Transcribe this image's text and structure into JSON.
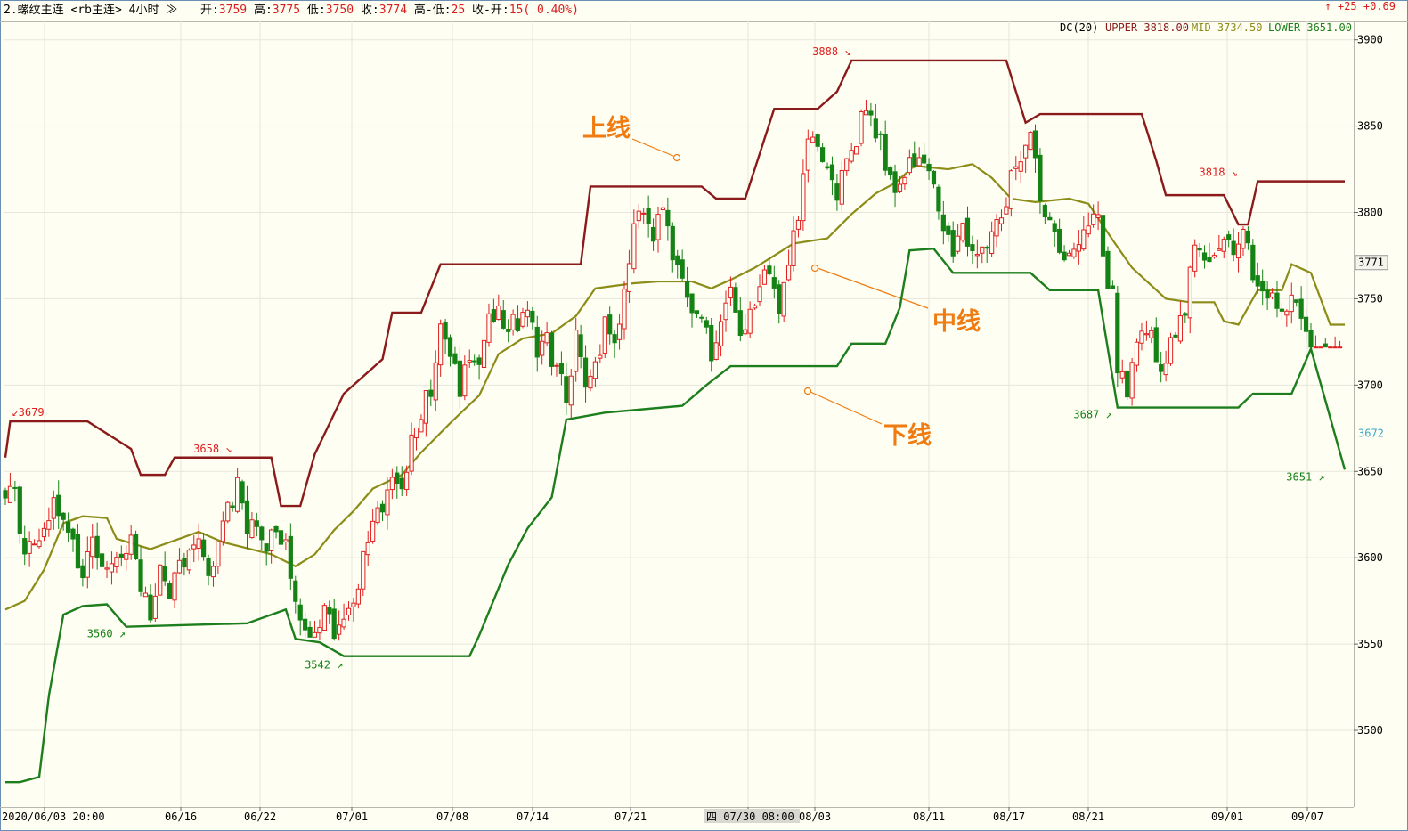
{
  "header": {
    "title": "2.螺纹主连 <rb主连> 4小时",
    "open_label": "开",
    "open_value": "3759",
    "high_label": "高",
    "high_value": "3775",
    "low_label": "低",
    "low_value": "3750",
    "close_label": "收",
    "close_value": "3774",
    "range_label": "高-低",
    "range_value": "25",
    "change_label": "收-开",
    "change_value": "15( 0.40%)",
    "right_change": "↑ +25 +0.69"
  },
  "colors": {
    "background": "#fefef2",
    "grid": "#e6e6dc",
    "up_candle": "#e02020",
    "down_candle": "#158215",
    "upper_line": "#8b1a1a",
    "mid_line": "#8c8c18",
    "lower_line": "#1c7e1c",
    "annotation": "#f07b10",
    "marker_high": "#e02020",
    "marker_low": "#158215"
  },
  "chart_data": {
    "type": "candlestick",
    "title": "",
    "ylim": [
      3460,
      3905
    ],
    "y_ticks": [
      3500,
      3550,
      3600,
      3650,
      3700,
      3750,
      3800,
      3850,
      3900
    ],
    "current_price_label": "3771",
    "cursor_price_label": "3672",
    "x_labels": [
      "2020/06/03 20:00",
      "06/16",
      "06/22",
      "07/01",
      "07/08",
      "07/14",
      "07/21",
      "四 07/30 08:00",
      "08/03",
      "08/11",
      "08/17",
      "08/21",
      "09/01",
      "09/07"
    ],
    "indicator": {
      "name": "DC(20)",
      "upper_text": "UPPER 3818.00",
      "mid_text": "MID 3734.50",
      "lower_text": "LOWER 3651.00",
      "upper": 3818.0,
      "mid": 3734.5,
      "lower": 3651.0
    },
    "upper_steps": [
      [
        0,
        3658
      ],
      [
        1,
        3679
      ],
      [
        17,
        3679
      ],
      [
        26,
        3663
      ],
      [
        28,
        3648
      ],
      [
        33,
        3648
      ],
      [
        35,
        3658
      ],
      [
        55,
        3658
      ],
      [
        57,
        3630
      ],
      [
        61,
        3630
      ],
      [
        64,
        3660
      ],
      [
        70,
        3695
      ],
      [
        78,
        3715
      ],
      [
        80,
        3742
      ],
      [
        86,
        3742
      ],
      [
        90,
        3770
      ],
      [
        104,
        3770
      ],
      [
        119,
        3770
      ],
      [
        121,
        3815
      ],
      [
        144,
        3815
      ],
      [
        147,
        3808
      ],
      [
        153,
        3808
      ],
      [
        159,
        3860
      ],
      [
        168,
        3860
      ],
      [
        172,
        3870
      ],
      [
        175,
        3888
      ],
      [
        207,
        3888
      ],
      [
        211,
        3852
      ],
      [
        214,
        3857
      ],
      [
        235,
        3857
      ],
      [
        238,
        3830
      ],
      [
        240,
        3810
      ],
      [
        252,
        3810
      ],
      [
        255,
        3793
      ],
      [
        257,
        3793
      ],
      [
        259,
        3818
      ],
      [
        277,
        3818
      ]
    ],
    "mid_line": [
      [
        0,
        3570
      ],
      [
        4,
        3575
      ],
      [
        8,
        3593
      ],
      [
        12,
        3620
      ],
      [
        16,
        3624
      ],
      [
        21,
        3623
      ],
      [
        23,
        3611
      ],
      [
        30,
        3605
      ],
      [
        35,
        3610
      ],
      [
        40,
        3615
      ],
      [
        45,
        3609
      ],
      [
        55,
        3602
      ],
      [
        60,
        3595
      ],
      [
        64,
        3602
      ],
      [
        68,
        3616
      ],
      [
        72,
        3627
      ],
      [
        76,
        3640
      ],
      [
        82,
        3648
      ],
      [
        86,
        3661
      ],
      [
        92,
        3678
      ],
      [
        98,
        3694
      ],
      [
        102,
        3718
      ],
      [
        107,
        3727
      ],
      [
        113,
        3730
      ],
      [
        118,
        3740
      ],
      [
        122,
        3756
      ],
      [
        130,
        3759
      ],
      [
        135,
        3760
      ],
      [
        142,
        3760
      ],
      [
        146,
        3756
      ],
      [
        150,
        3761
      ],
      [
        155,
        3768
      ],
      [
        163,
        3782
      ],
      [
        170,
        3785
      ],
      [
        175,
        3799
      ],
      [
        180,
        3811
      ],
      [
        184,
        3817
      ],
      [
        188,
        3827
      ],
      [
        195,
        3825
      ],
      [
        200,
        3828
      ],
      [
        204,
        3820
      ],
      [
        208,
        3808
      ],
      [
        213,
        3806
      ],
      [
        220,
        3808
      ],
      [
        224,
        3805
      ],
      [
        229,
        3784
      ],
      [
        233,
        3768
      ],
      [
        240,
        3750
      ],
      [
        245,
        3748
      ],
      [
        250,
        3748
      ],
      [
        252,
        3737
      ],
      [
        255,
        3735
      ],
      [
        259,
        3755
      ],
      [
        264,
        3755
      ],
      [
        266,
        3770
      ],
      [
        270,
        3765
      ],
      [
        274,
        3735
      ],
      [
        277,
        3735
      ]
    ],
    "lower_steps": [
      [
        0,
        3470
      ],
      [
        3,
        3470
      ],
      [
        7,
        3473
      ],
      [
        9,
        3520
      ],
      [
        12,
        3567
      ],
      [
        16,
        3572
      ],
      [
        21,
        3573
      ],
      [
        25,
        3560
      ],
      [
        50,
        3562
      ],
      [
        55,
        3567
      ],
      [
        58,
        3570
      ],
      [
        60,
        3553
      ],
      [
        65,
        3551
      ],
      [
        70,
        3543
      ],
      [
        96,
        3543
      ],
      [
        98,
        3555
      ],
      [
        104,
        3596
      ],
      [
        108,
        3617
      ],
      [
        113,
        3635
      ],
      [
        116,
        3680
      ],
      [
        124,
        3684
      ],
      [
        140,
        3688
      ],
      [
        145,
        3700
      ],
      [
        150,
        3711
      ],
      [
        172,
        3711
      ],
      [
        175,
        3724
      ],
      [
        182,
        3724
      ],
      [
        185,
        3745
      ],
      [
        187,
        3778
      ],
      [
        192,
        3779
      ],
      [
        196,
        3765
      ],
      [
        198,
        3765
      ],
      [
        212,
        3765
      ],
      [
        216,
        3755
      ],
      [
        226,
        3755
      ],
      [
        230,
        3687
      ],
      [
        255,
        3687
      ],
      [
        258,
        3695
      ],
      [
        266,
        3695
      ],
      [
        270,
        3721
      ],
      [
        277,
        3651
      ]
    ],
    "price_path": [
      [
        0,
        3640
      ],
      [
        2,
        3634
      ],
      [
        4,
        3608
      ],
      [
        6,
        3604
      ],
      [
        8,
        3612
      ],
      [
        10,
        3630
      ],
      [
        12,
        3622
      ],
      [
        14,
        3605
      ],
      [
        16,
        3590
      ],
      [
        18,
        3612
      ],
      [
        20,
        3596
      ],
      [
        22,
        3592
      ],
      [
        24,
        3600
      ],
      [
        26,
        3615
      ],
      [
        28,
        3582
      ],
      [
        30,
        3570
      ],
      [
        32,
        3592
      ],
      [
        34,
        3580
      ],
      [
        36,
        3598
      ],
      [
        38,
        3600
      ],
      [
        40,
        3610
      ],
      [
        42,
        3592
      ],
      [
        44,
        3604
      ],
      [
        46,
        3630
      ],
      [
        48,
        3640
      ],
      [
        50,
        3620
      ],
      [
        52,
        3612
      ],
      [
        54,
        3607
      ],
      [
        56,
        3615
      ],
      [
        58,
        3612
      ],
      [
        60,
        3568
      ],
      [
        62,
        3555
      ],
      [
        64,
        3560
      ],
      [
        66,
        3570
      ],
      [
        68,
        3558
      ],
      [
        70,
        3570
      ],
      [
        72,
        3575
      ],
      [
        74,
        3600
      ],
      [
        76,
        3615
      ],
      [
        78,
        3630
      ],
      [
        80,
        3640
      ],
      [
        82,
        3645
      ],
      [
        84,
        3665
      ],
      [
        86,
        3680
      ],
      [
        88,
        3700
      ],
      [
        90,
        3730
      ],
      [
        92,
        3720
      ],
      [
        94,
        3700
      ],
      [
        96,
        3718
      ],
      [
        98,
        3712
      ],
      [
        100,
        3740
      ],
      [
        102,
        3745
      ],
      [
        104,
        3730
      ],
      [
        106,
        3738
      ],
      [
        108,
        3740
      ],
      [
        110,
        3720
      ],
      [
        112,
        3725
      ],
      [
        114,
        3705
      ],
      [
        116,
        3695
      ],
      [
        118,
        3725
      ],
      [
        120,
        3700
      ],
      [
        122,
        3710
      ],
      [
        124,
        3735
      ],
      [
        126,
        3720
      ],
      [
        128,
        3752
      ],
      [
        130,
        3790
      ],
      [
        132,
        3800
      ],
      [
        134,
        3790
      ],
      [
        136,
        3800
      ],
      [
        138,
        3775
      ],
      [
        140,
        3760
      ],
      [
        142,
        3745
      ],
      [
        144,
        3738
      ],
      [
        146,
        3720
      ],
      [
        148,
        3740
      ],
      [
        150,
        3755
      ],
      [
        152,
        3732
      ],
      [
        154,
        3745
      ],
      [
        156,
        3760
      ],
      [
        158,
        3760
      ],
      [
        160,
        3740
      ],
      [
        162,
        3765
      ],
      [
        164,
        3800
      ],
      [
        166,
        3840
      ],
      [
        168,
        3836
      ],
      [
        170,
        3830
      ],
      [
        172,
        3810
      ],
      [
        174,
        3825
      ],
      [
        176,
        3845
      ],
      [
        178,
        3858
      ],
      [
        180,
        3848
      ],
      [
        182,
        3830
      ],
      [
        184,
        3815
      ],
      [
        186,
        3820
      ],
      [
        188,
        3830
      ],
      [
        190,
        3825
      ],
      [
        192,
        3815
      ],
      [
        194,
        3795
      ],
      [
        196,
        3780
      ],
      [
        198,
        3790
      ],
      [
        200,
        3780
      ],
      [
        202,
        3775
      ],
      [
        204,
        3790
      ],
      [
        206,
        3800
      ],
      [
        208,
        3820
      ],
      [
        210,
        3832
      ],
      [
        212,
        3840
      ],
      [
        214,
        3810
      ],
      [
        216,
        3790
      ],
      [
        218,
        3775
      ],
      [
        220,
        3770
      ],
      [
        222,
        3780
      ],
      [
        224,
        3790
      ],
      [
        226,
        3800
      ],
      [
        228,
        3750
      ],
      [
        230,
        3710
      ],
      [
        232,
        3700
      ],
      [
        234,
        3728
      ],
      [
        236,
        3735
      ],
      [
        238,
        3715
      ],
      [
        240,
        3712
      ],
      [
        242,
        3730
      ],
      [
        244,
        3745
      ],
      [
        246,
        3780
      ],
      [
        248,
        3775
      ],
      [
        250,
        3773
      ],
      [
        252,
        3780
      ],
      [
        254,
        3780
      ],
      [
        256,
        3795
      ],
      [
        258,
        3760
      ],
      [
        260,
        3755
      ],
      [
        262,
        3758
      ],
      [
        264,
        3740
      ],
      [
        266,
        3750
      ],
      [
        268,
        3745
      ],
      [
        270,
        3710
      ],
      [
        272,
        3660
      ],
      [
        274,
        3720
      ],
      [
        276,
        3672
      ]
    ],
    "extremes": [
      {
        "label": "3679",
        "value": 3679,
        "index": 1,
        "kind": "high",
        "side": "right",
        "arrow": "↙"
      },
      {
        "label": "3658",
        "value": 3658,
        "index": 47,
        "kind": "high",
        "side": "left",
        "arrow": "↘"
      },
      {
        "label": "3888",
        "value": 3888,
        "index": 175,
        "kind": "high",
        "side": "left",
        "arrow": "↘"
      },
      {
        "label": "3818",
        "value": 3818,
        "index": 255,
        "kind": "high",
        "side": "left",
        "arrow": "↘"
      },
      {
        "label": "3560",
        "value": 3560,
        "index": 25,
        "kind": "low",
        "side": "left",
        "arrow": "↗"
      },
      {
        "label": "3542",
        "value": 3542,
        "index": 70,
        "kind": "low",
        "side": "left",
        "arrow": "↗"
      },
      {
        "label": "3687",
        "value": 3687,
        "index": 229,
        "kind": "low",
        "side": "left",
        "arrow": "↗"
      },
      {
        "label": "3651",
        "value": 3651,
        "index": 273,
        "kind": "low",
        "side": "left",
        "arrow": "↗"
      }
    ]
  },
  "annotations": {
    "upper": "上线",
    "mid": "中线",
    "lower": "下线"
  }
}
